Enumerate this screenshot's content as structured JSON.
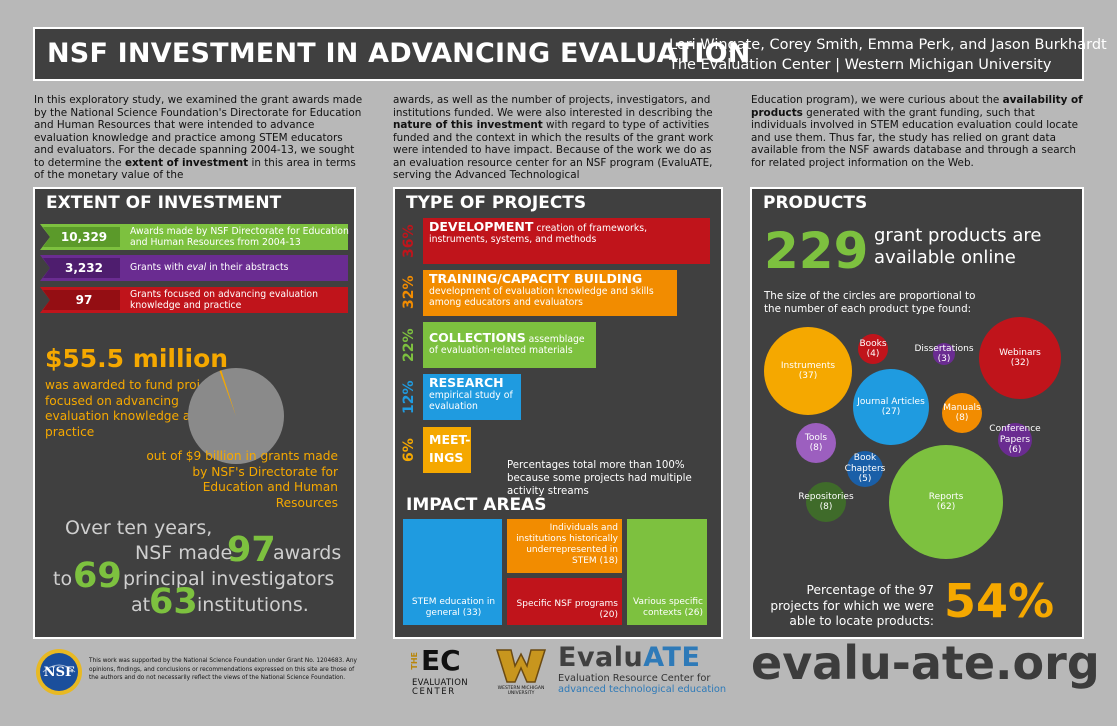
{
  "header": {
    "title": "NSF INVESTMENT IN ADVANCING EVALUATION",
    "authors": "Lori Wingate, Corey Smith, Emma Perk, and Jason Burkhardt",
    "affiliation": "The Evaluation Center | Western Michigan University"
  },
  "intro": {
    "col1_a": "In this exploratory study, we examined the grant awards made by the National Science Foundation's Directorate for Education and Human Resources that were intended to advance evaluation knowledge and practice among STEM educators and evaluators. For the decade spanning 2004-13, we sought to determine the ",
    "col1_b": "extent of investment",
    "col1_c": " in this area in terms of the monetary value of the",
    "col2_a": "awards, as well as the number of projects, investigators, and institutions funded. We were also interested in describing the ",
    "col2_b": "nature of this investment",
    "col2_c": " with regard to type of activities funded and the context in which the results of the grant work were intended to have impact. Because of the work we do as an evaluation resource center for an NSF program (EvaluATE, serving the Advanced Technological",
    "col3_a": "Education program), we were curious about the ",
    "col3_b": "availability of products",
    "col3_c": " generated with the grant funding, such that individuals involved in STEM education evaluation could locate and use them. Thus far, the study has relied on grant data  available from the NSF awards database and through a search for related project information on the Web."
  },
  "extent": {
    "title": "EXTENT OF INVESTMENT",
    "ribbons": [
      {
        "num": "10,329",
        "label": "Awards made by NSF Directorate for Education and Human Resources from 2004-13",
        "color": "#7dc13f"
      },
      {
        "num": "3,232",
        "label_pre": "Grants with ",
        "label_em": "eval",
        "label_post": " in their abstracts",
        "color": "#6a2c91"
      },
      {
        "num": "97",
        "label": "Grants focused on advancing evaluation knowledge and practice",
        "color": "#c0141b"
      }
    ],
    "money": "$55.5 million",
    "money_sub": "was awarded to fund projects focused on advancing evaluation knowledge and practice",
    "out_of": "out of $9 billion in grants made by NSF's Directorate for Education and Human Resources",
    "ten_years_1": "Over ten years,",
    "nsf_made": "NSF made",
    "awards_num": "97",
    "awards_word": "awards",
    "to": "to",
    "pi_num": "69",
    "pi_word": "principal investigators",
    "at": "at",
    "inst_num": "63",
    "inst_word": "institutions."
  },
  "types": {
    "title": "TYPE OF PROJECTS",
    "bars": [
      {
        "pct": "36%",
        "name": "DEVELOPMENT",
        "desc": " creation of frameworks, instruments, systems, and methods",
        "color": "#c0141b",
        "pct_color": "#c0141b"
      },
      {
        "pct": "32%",
        "name": "TRAINING/CAPACITY BUILDING",
        "desc": "development of evaluation knowledge and skills among educators and evaluators",
        "color": "#f28c00",
        "pct_color": "#f28c00"
      },
      {
        "pct": "22%",
        "name": "COLLECTIONS",
        "desc": " assemblage of evaluation-related materials",
        "color": "#7dc13f",
        "pct_color": "#7dc13f"
      },
      {
        "pct": "12%",
        "name": "RESEARCH",
        "desc": "empirical study of evaluation",
        "color": "#1f9be0",
        "pct_color": "#1f9be0"
      },
      {
        "pct": "6%",
        "name": "MEET-INGS",
        "name_l1": "MEET-",
        "name_l2": "INGS",
        "desc": "",
        "color": "#f5a800",
        "pct_color": "#f5a800"
      }
    ],
    "note": "Percentages total more than 100% because some projects had multiple activity streams"
  },
  "impact": {
    "title": "IMPACT AREAS",
    "tiles": [
      {
        "label": "STEM education in general (33)",
        "color": "#1f9be0"
      },
      {
        "label": "Individuals and institutions historically underrepresented in STEM (18)",
        "color": "#f28c00"
      },
      {
        "label": "Specific NSF programs (20)",
        "color": "#c0141b"
      },
      {
        "label": "Various specific contexts (26)",
        "color": "#7dc13f"
      }
    ]
  },
  "products": {
    "title": "PRODUCTS",
    "count": "229",
    "count_sub": "grant products are available online",
    "size_note": "The size of the circles are proportional to the number of each product type found:",
    "circles": [
      {
        "name": "Instruments",
        "count": "(37)",
        "value": 37,
        "color": "#f5a800"
      },
      {
        "name": "Books",
        "count": "(4)",
        "value": 4,
        "color": "#c0141b"
      },
      {
        "name": "Dissertations",
        "count": "(3)",
        "value": 3,
        "color": "#6a2c91"
      },
      {
        "name": "Webinars",
        "count": "(32)",
        "value": 32,
        "color": "#c0141b"
      },
      {
        "name": "Journal Articles",
        "count": "(27)",
        "value": 27,
        "color": "#1f9be0"
      },
      {
        "name": "Manuals",
        "count": "(8)",
        "value": 8,
        "color": "#f28c00"
      },
      {
        "name": "Tools",
        "count": "(8)",
        "value": 8,
        "color": "#9c5fbf"
      },
      {
        "name": "Conference Papers",
        "name_l1": "Conference",
        "name_l2": "Papers",
        "count": "(6)",
        "value": 6,
        "color": "#6a2c91"
      },
      {
        "name": "Book Chapters",
        "name_l1": "Book",
        "name_l2": "Chapters",
        "count": "(5)",
        "value": 5,
        "color": "#1a5fa8"
      },
      {
        "name": "Repositories",
        "count": "(8)",
        "value": 8,
        "color": "#3f6b2a"
      },
      {
        "name": "Reports",
        "count": "(62)",
        "value": 62,
        "color": "#7dc13f"
      }
    ],
    "pct_label": "Percentage of the 97 projects for which we were able to locate products:",
    "pct": "54%"
  },
  "pie": {
    "part": 55.5,
    "total": 9000,
    "colors": {
      "rest": "#8a8a8a",
      "slice": "#f5a800"
    }
  },
  "footer": {
    "nsf_logo_text": "NSF",
    "funding": "This work was supported by the National Science Foundation under Grant No. 1204683. Any opinions, findings, and conclusions or recommendations expressed on this site are those of the authors and do not necessarily reflect the views of the National Science Foundation.",
    "ec_the": "THE",
    "ec_letters": "EC",
    "ec_l1": "EVALUATION",
    "ec_l2": "CENTER",
    "wmu_name": "WESTERN MICHIGAN UNIVERSITY",
    "evaluate_a": "Evalu",
    "evaluate_b": "ATE",
    "evaluate_sub1": "Evaluation Resource Center for",
    "evaluate_sub2": "advanced technological education",
    "url": "evalu-ate.org"
  }
}
